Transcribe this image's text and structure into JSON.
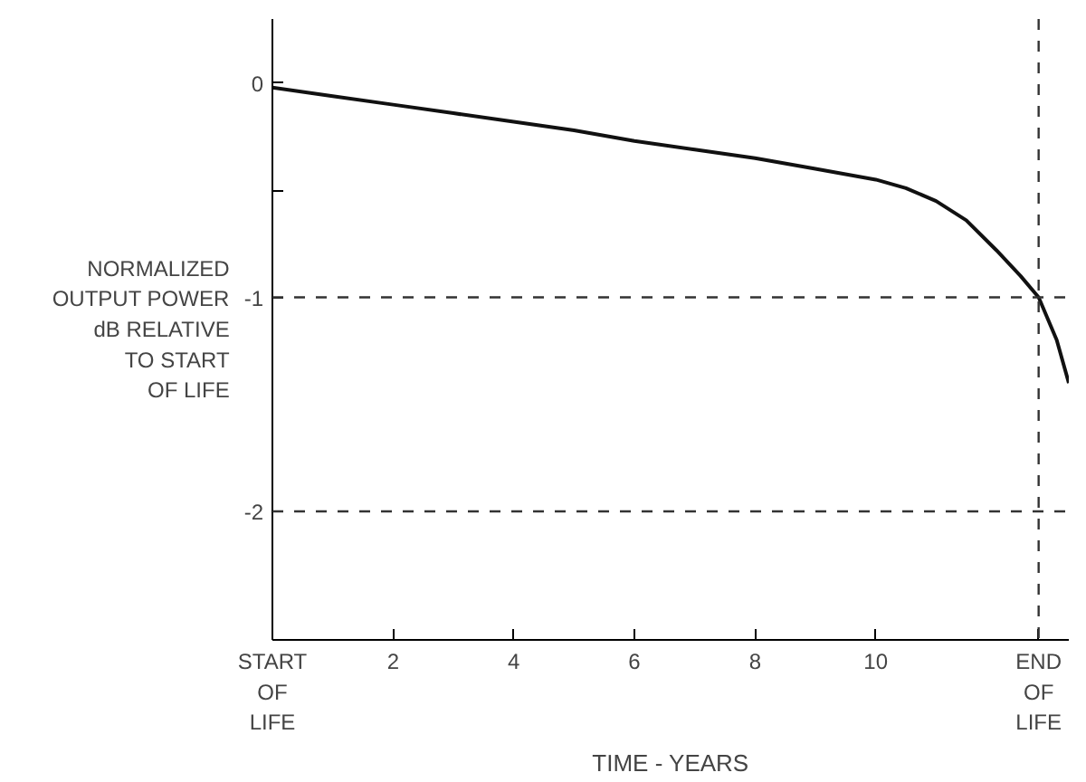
{
  "chart_data": {
    "type": "line",
    "xlabel": "TIME - YEARS",
    "ylabel": "NORMALIZED\nOUTPUT POWER\ndB RELATIVE\nTO START\nOF LIFE",
    "x": [
      0,
      1,
      2,
      3,
      4,
      5,
      6,
      7,
      8,
      9,
      10,
      10.5,
      11,
      11.5,
      12,
      12.4,
      12.7,
      13,
      13.2
    ],
    "series": [
      {
        "color": "#111111",
        "values": [
          -0.02,
          -0.06,
          -0.1,
          -0.14,
          -0.18,
          -0.22,
          -0.27,
          -0.31,
          -0.35,
          -0.4,
          -0.45,
          -0.49,
          -0.55,
          -0.64,
          -0.78,
          -0.9,
          -1.0,
          -1.2,
          -1.4
        ]
      }
    ],
    "xlim": [
      0,
      13.2
    ],
    "ylim": [
      -2.6,
      0.3
    ],
    "xticks": [
      {
        "value": 0,
        "label": "START\nOF\nLIFE"
      },
      2,
      4,
      6,
      8,
      {
        "value": 10,
        "label": "10"
      },
      {
        "value": 12.7,
        "label": "END\nOF\nLIFE"
      }
    ],
    "yticks": [
      0,
      {
        "value": -0.5,
        "label": null
      },
      -1,
      -2
    ],
    "ref_lines": [
      {
        "axis": "y",
        "value": -1,
        "line_style": "dashed"
      },
      {
        "axis": "y",
        "value": -2,
        "line_style": "dashed"
      },
      {
        "axis": "x",
        "value": 12.7,
        "line_style": "dashed"
      }
    ],
    "grid": false,
    "marker": "none",
    "line_style": "solid"
  }
}
